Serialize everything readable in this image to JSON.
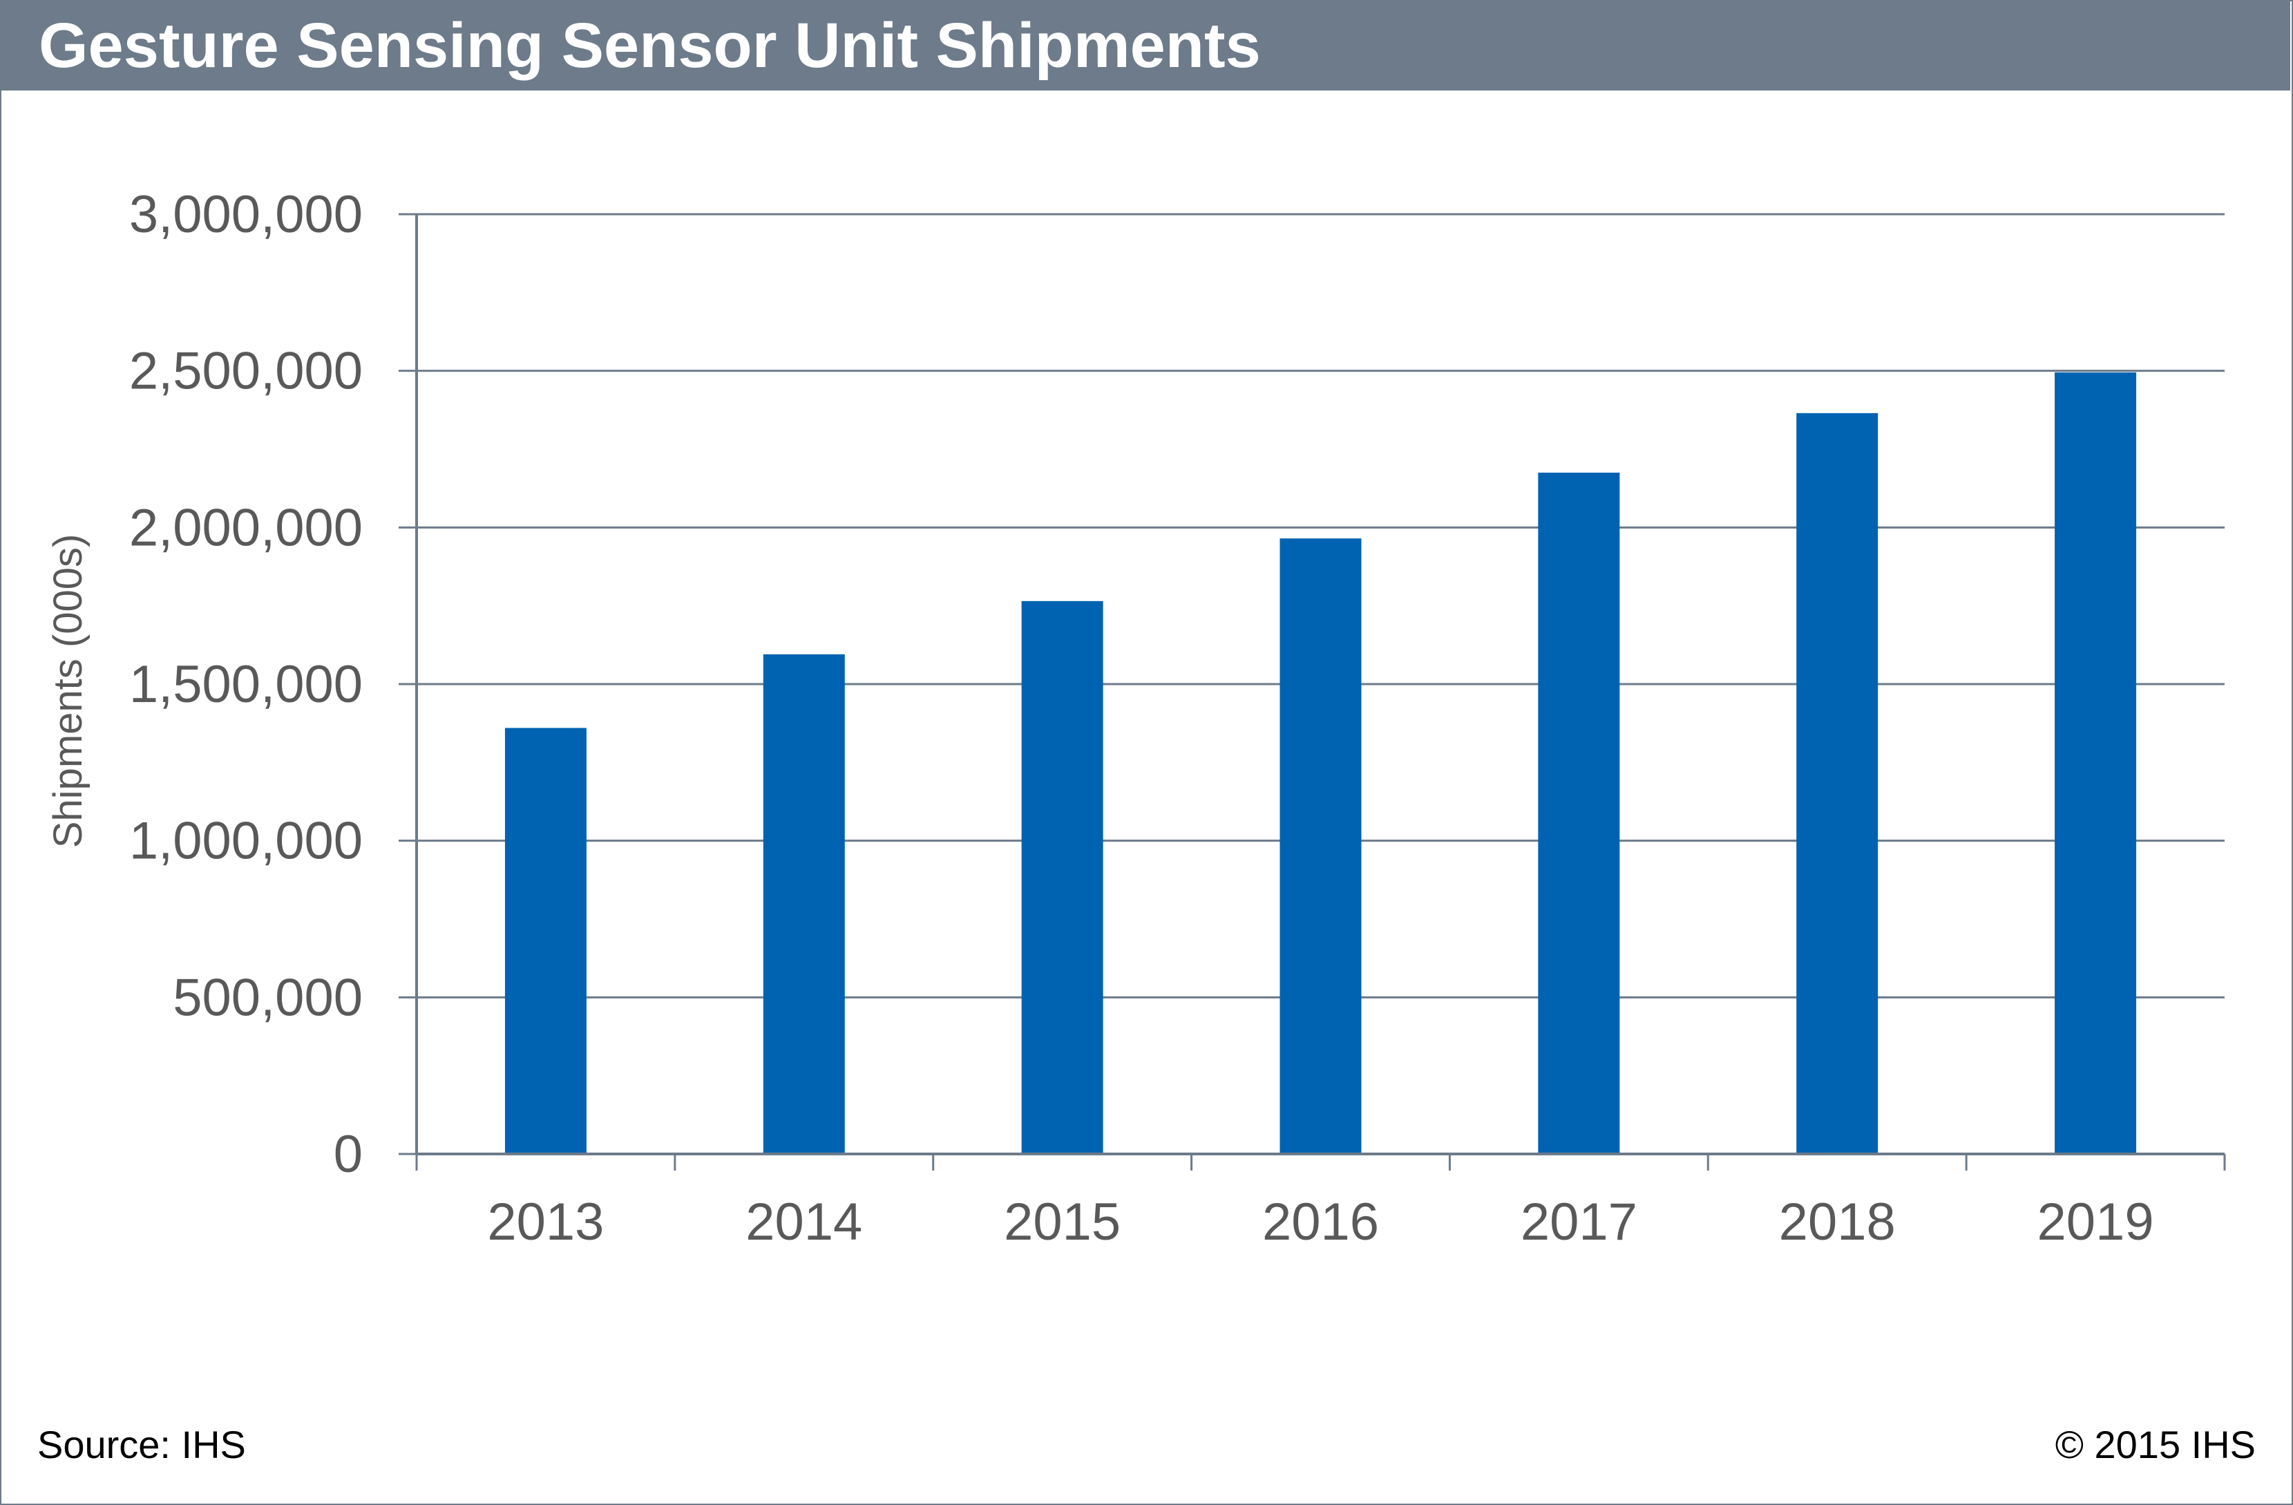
{
  "title": "Gesture Sensing Sensor Unit Shipments",
  "footer": {
    "source": "Source: IHS",
    "copyright": "© 2015 IHS"
  },
  "colors": {
    "title_bar": "#6d7b8a",
    "bar": "#0063b1",
    "grid": "#6d7b8a",
    "axis_text": "#595959"
  },
  "chart_data": {
    "type": "bar",
    "title": "Gesture Sensing Sensor Unit Shipments",
    "xlabel": "",
    "ylabel": "Shipments (000s)",
    "categories": [
      "2013",
      "2014",
      "2015",
      "2016",
      "2017",
      "2018",
      "2019"
    ],
    "values": [
      1360000,
      1595000,
      1765000,
      1965000,
      2175000,
      2365000,
      2495000
    ],
    "ylim": [
      0,
      3000000
    ],
    "yticks": [
      0,
      500000,
      1000000,
      1500000,
      2000000,
      2500000,
      3000000
    ],
    "ytick_labels": [
      "0",
      "500,000",
      "1,000,000",
      "1,500,000",
      "2,000,000",
      "2,500,000",
      "3,000,000"
    ],
    "grid": true,
    "legend": "none"
  }
}
